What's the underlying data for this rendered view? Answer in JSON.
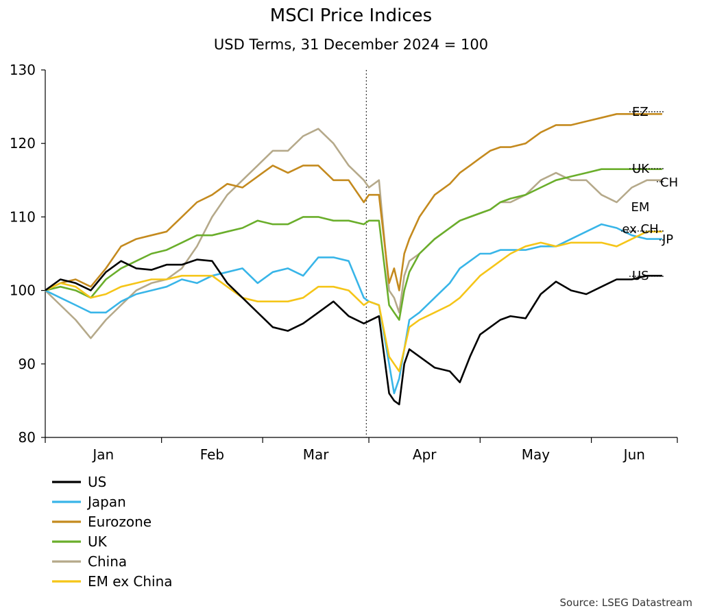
{
  "chart_data": {
    "type": "line",
    "title": "MSCI Price Indices",
    "subtitle": "USD Terms, 31 December 2024 = 100",
    "source": "Source: LSEG Datastream",
    "ylim": [
      80,
      130
    ],
    "yticks": [
      80,
      90,
      100,
      110,
      120,
      130
    ],
    "xlim": [
      0,
      125
    ],
    "x_tick_positions": [
      0,
      23,
      43,
      64,
      86,
      108,
      125
    ],
    "x_month_labels": [
      {
        "label": "Jan",
        "x": 11.5
      },
      {
        "label": "Feb",
        "x": 33
      },
      {
        "label": "Mar",
        "x": 53.5
      },
      {
        "label": "Apr",
        "x": 75
      },
      {
        "label": "May",
        "x": 97
      },
      {
        "label": "Jun",
        "x": 116.5
      }
    ],
    "event_line_x": 63.5,
    "grid": false,
    "legend_position": "bottom-left",
    "series": [
      {
        "name": "US",
        "color": "#000000",
        "end_label": "US",
        "x": [
          0,
          3,
          6,
          9,
          12,
          15,
          18,
          21,
          24,
          27,
          30,
          33,
          36,
          39,
          42,
          45,
          48,
          51,
          54,
          57,
          60,
          63,
          66,
          68,
          69,
          70,
          71,
          72,
          74,
          77,
          80,
          82,
          84,
          86,
          88,
          90,
          92,
          95,
          98,
          101,
          104,
          107,
          110,
          113,
          116,
          119,
          121,
          122
        ],
        "values": [
          100,
          101.5,
          101,
          100,
          102.5,
          104,
          103,
          102.8,
          103.5,
          103.5,
          104.2,
          104,
          101,
          99,
          97,
          95,
          94.5,
          95.5,
          97,
          98.5,
          96.5,
          95.5,
          96.5,
          86,
          85,
          84.5,
          90,
          92,
          91,
          89.5,
          89,
          87.5,
          91,
          94,
          95,
          96,
          96.5,
          96.2,
          99.5,
          101.2,
          100,
          99.5,
          100.5,
          101.5,
          101.5,
          102,
          102,
          102
        ]
      },
      {
        "name": "Japan",
        "color": "#38B5E8",
        "end_label": "JP",
        "x": [
          0,
          3,
          6,
          9,
          12,
          15,
          18,
          21,
          24,
          27,
          30,
          33,
          36,
          39,
          42,
          45,
          48,
          51,
          54,
          57,
          60,
          63,
          64,
          66,
          68,
          69,
          70,
          71,
          72,
          74,
          77,
          80,
          82,
          84,
          86,
          88,
          90,
          92,
          95,
          98,
          101,
          104,
          107,
          110,
          113,
          116,
          119,
          121,
          122
        ],
        "values": [
          100,
          99,
          98,
          97,
          97,
          98.5,
          99.5,
          100,
          100.5,
          101.5,
          101,
          102,
          102.5,
          103,
          101,
          102.5,
          103,
          102,
          104.5,
          104.5,
          104,
          99,
          98.5,
          98,
          90,
          86,
          88,
          92,
          96,
          97,
          99,
          101,
          103,
          104,
          105,
          105,
          105.5,
          105.5,
          105.5,
          106,
          106,
          107,
          108,
          109,
          108.5,
          107.5,
          107,
          107,
          107
        ]
      },
      {
        "name": "Eurozone",
        "color": "#C48A1E",
        "end_label": "EZ",
        "x": [
          0,
          3,
          6,
          9,
          12,
          15,
          18,
          21,
          24,
          27,
          30,
          33,
          36,
          39,
          42,
          45,
          48,
          51,
          54,
          57,
          60,
          63,
          64,
          66,
          68,
          69,
          70,
          71,
          72,
          74,
          77,
          80,
          82,
          84,
          86,
          88,
          90,
          92,
          95,
          98,
          101,
          104,
          107,
          110,
          113,
          116,
          119,
          121,
          122
        ],
        "values": [
          100,
          101,
          101.5,
          100.5,
          103,
          106,
          107,
          107.5,
          108,
          110,
          112,
          113,
          114.5,
          114,
          115.5,
          117,
          116,
          117,
          117,
          115,
          115,
          112,
          113,
          113,
          101,
          103,
          100,
          105,
          107,
          110,
          113,
          114.5,
          116,
          117,
          118,
          119,
          119.5,
          119.5,
          120,
          121.5,
          122.5,
          122.5,
          123,
          123.5,
          124,
          124,
          124,
          124,
          124
        ]
      },
      {
        "name": "UK",
        "color": "#6AAE2B",
        "end_label": "UK",
        "x": [
          0,
          3,
          6,
          9,
          12,
          15,
          18,
          21,
          24,
          27,
          30,
          33,
          36,
          39,
          42,
          45,
          48,
          51,
          54,
          57,
          60,
          63,
          64,
          66,
          68,
          69,
          70,
          71,
          72,
          74,
          77,
          80,
          82,
          84,
          86,
          88,
          90,
          92,
          95,
          98,
          101,
          104,
          107,
          110,
          113,
          116,
          119,
          121,
          122
        ],
        "values": [
          100,
          100.5,
          100,
          99,
          101.5,
          103,
          104,
          105,
          105.5,
          106.5,
          107.5,
          107.5,
          108,
          108.5,
          109.5,
          109,
          109,
          110,
          110,
          109.5,
          109.5,
          109,
          109.5,
          109.5,
          98,
          97,
          96,
          100,
          102.5,
          105,
          107,
          108.5,
          109.5,
          110,
          110.5,
          111,
          112,
          112.5,
          113,
          114,
          115,
          115.5,
          116,
          116.5,
          116.5,
          116.5,
          116.5,
          116.5,
          116.5
        ]
      },
      {
        "name": "China",
        "color": "#B5A98A",
        "end_label": "CH",
        "x": [
          0,
          3,
          6,
          9,
          12,
          15,
          18,
          21,
          24,
          27,
          30,
          33,
          36,
          39,
          42,
          45,
          48,
          51,
          54,
          57,
          60,
          63,
          64,
          66,
          68,
          69,
          70,
          71,
          72,
          74,
          77,
          80,
          82,
          84,
          86,
          88,
          90,
          92,
          95,
          98,
          101,
          104,
          107,
          110,
          113,
          116,
          119,
          121,
          122
        ],
        "values": [
          100,
          98,
          96,
          93.5,
          96,
          98,
          100,
          101,
          101.5,
          103,
          106,
          110,
          113,
          115,
          117,
          119,
          119,
          121,
          122,
          120,
          117,
          115,
          114,
          115,
          100,
          99,
          97,
          102,
          104,
          105,
          107,
          108.5,
          109.5,
          110,
          110.5,
          111,
          112,
          112,
          113,
          115,
          116,
          115,
          115,
          113,
          112,
          114,
          115,
          115,
          115
        ]
      },
      {
        "name": "EM ex China",
        "color": "#F5C518",
        "end_label": "EM ex CH",
        "x": [
          0,
          3,
          6,
          9,
          12,
          15,
          18,
          21,
          24,
          27,
          30,
          33,
          36,
          39,
          42,
          45,
          48,
          51,
          54,
          57,
          60,
          63,
          64,
          66,
          68,
          69,
          70,
          71,
          72,
          74,
          77,
          80,
          82,
          84,
          86,
          88,
          90,
          92,
          95,
          98,
          101,
          104,
          107,
          110,
          113,
          116,
          119,
          121,
          122
        ],
        "values": [
          100,
          101,
          100.5,
          99,
          99.5,
          100.5,
          101,
          101.5,
          101.5,
          102,
          102,
          102,
          100.5,
          99,
          98.5,
          98.5,
          98.5,
          99,
          100.5,
          100.5,
          100,
          98,
          98.5,
          98,
          91,
          90,
          89,
          92,
          95,
          96,
          97,
          98,
          99,
          100.5,
          102,
          103,
          104,
          105,
          106,
          106.5,
          106,
          106.5,
          106.5,
          106.5,
          106,
          107,
          108,
          108,
          108
        ]
      }
    ]
  }
}
